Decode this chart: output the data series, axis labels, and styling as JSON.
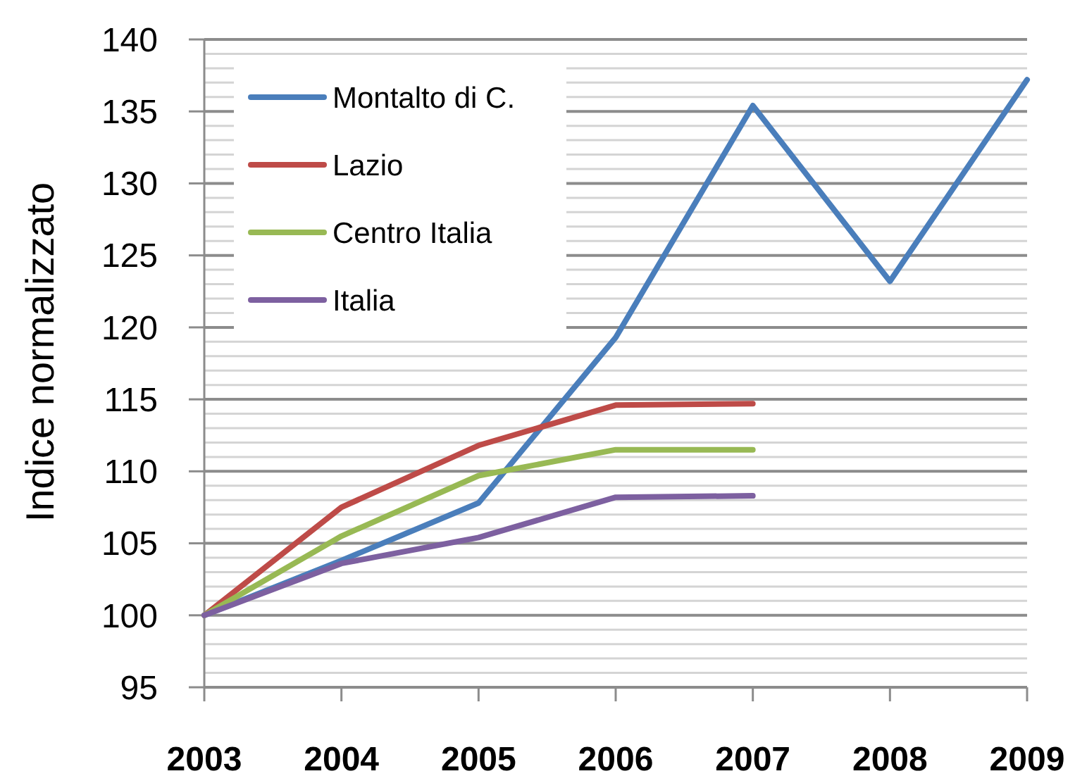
{
  "chart_data": {
    "type": "line",
    "ylabel": "Indice normalizzato",
    "categories": [
      "2003",
      "2004",
      "2005",
      "2006",
      "2007",
      "2008",
      "2009"
    ],
    "series": [
      {
        "name": "Montalto di C.",
        "color": "#4a7ebb",
        "values": [
          100,
          103.8,
          107.8,
          119.3,
          135.4,
          123.2,
          137.2
        ]
      },
      {
        "name": "Lazio",
        "color": "#be4b48",
        "values": [
          100,
          107.5,
          111.8,
          114.6,
          114.7,
          null,
          null
        ]
      },
      {
        "name": "Centro Italia",
        "color": "#98b954",
        "values": [
          100,
          105.5,
          109.7,
          111.5,
          111.5,
          null,
          null
        ]
      },
      {
        "name": "Italia",
        "color": "#7d60a0",
        "values": [
          100,
          103.6,
          105.4,
          108.2,
          108.3,
          null,
          null
        ]
      }
    ],
    "ylim": [
      95,
      140
    ],
    "yticks": [
      95,
      {
        "value": 96,
        "label": null
      },
      {
        "value": 97,
        "label": null
      },
      {
        "value": 98,
        "label": null
      },
      {
        "value": 99,
        "label": null
      },
      100,
      {
        "value": 101,
        "label": null
      },
      {
        "value": 102,
        "label": null
      },
      {
        "value": 103,
        "label": null
      },
      {
        "value": 104,
        "label": null
      },
      105,
      {
        "value": 106,
        "label": null
      },
      {
        "value": 107,
        "label": null
      },
      {
        "value": 108,
        "label": null
      },
      {
        "value": 109,
        "label": null
      },
      110,
      {
        "value": 111,
        "label": null
      },
      {
        "value": 112,
        "label": null
      },
      {
        "value": 113,
        "label": null
      },
      {
        "value": 114,
        "label": null
      },
      115,
      {
        "value": 116,
        "label": null
      },
      {
        "value": 117,
        "label": null
      },
      {
        "value": 118,
        "label": null
      },
      {
        "value": 119,
        "label": null
      },
      120,
      {
        "value": 121,
        "label": null
      },
      {
        "value": 122,
        "label": null
      },
      {
        "value": 123,
        "label": null
      },
      {
        "value": 124,
        "label": null
      },
      125,
      {
        "value": 126,
        "label": null
      },
      {
        "value": 127,
        "label": null
      },
      {
        "value": 128,
        "label": null
      },
      {
        "value": 129,
        "label": null
      },
      130,
      {
        "value": 131,
        "label": null
      },
      {
        "value": 132,
        "label": null
      },
      {
        "value": 133,
        "label": null
      },
      {
        "value": 134,
        "label": null
      },
      135,
      {
        "value": 136,
        "label": null
      },
      {
        "value": 137,
        "label": null
      },
      {
        "value": 138,
        "label": null
      },
      {
        "value": 139,
        "label": null
      },
      140
    ],
    "grid": "y",
    "legend": "top left"
  }
}
